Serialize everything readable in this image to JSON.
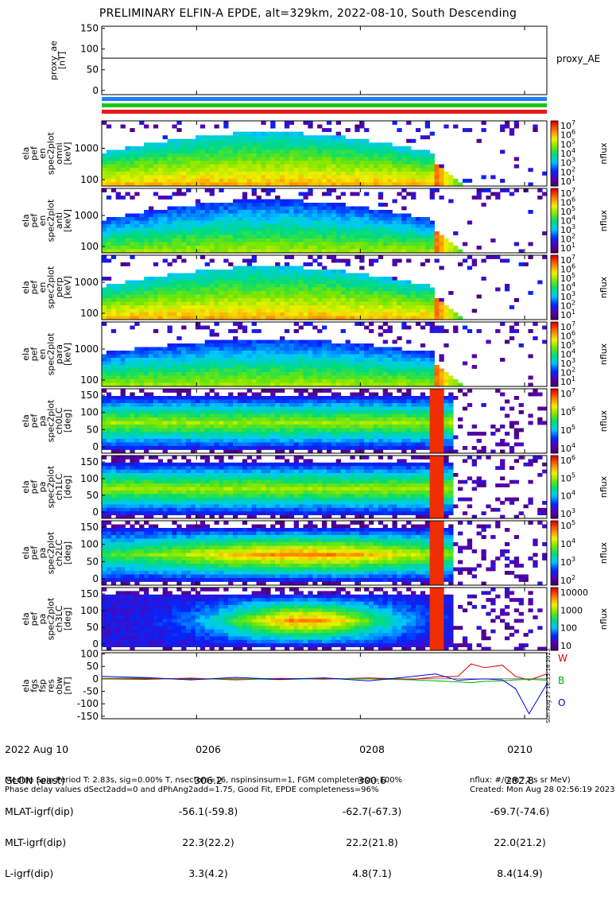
{
  "title": "PRELIMINARY ELFIN-A EPDE, alt=329km, 2022-08-10, South Descending",
  "colors": {
    "blue_bar": "#1e7fff",
    "green_bar": "#18c818",
    "red_bar": "#e81818",
    "proxy_line": "#000000",
    "w_line": "#e00000",
    "b_line": "#00b000",
    "o_line": "#0000e0"
  },
  "chart_data": [
    {
      "type": "line",
      "ylabel_lines": [
        "proxy_ae",
        "[nT]"
      ],
      "legend": "proxy_AE",
      "ylim": [
        -10,
        155
      ],
      "yticks": [
        "150",
        "100",
        "50",
        "0"
      ],
      "x": [
        0,
        1
      ],
      "values": [
        78,
        78
      ]
    },
    {
      "type": "heatmap",
      "ylabel_lines": [
        "ela",
        "pef",
        "en",
        "spec2plot",
        "omni",
        "[keV]"
      ],
      "yticks": [
        "1000",
        "100"
      ],
      "colorbar_label": "nflux",
      "colorbar_ticks": [
        "10^7",
        "10^6",
        "10^5",
        "10^4",
        "10^3",
        "10^2",
        "10^1"
      ]
    },
    {
      "type": "heatmap",
      "ylabel_lines": [
        "ela",
        "pef",
        "en",
        "spec2plot",
        "anti",
        "[keV]"
      ],
      "yticks": [
        "1000",
        "100"
      ],
      "colorbar_label": "nflux",
      "colorbar_ticks": [
        "10^7",
        "10^6",
        "10^5",
        "10^4",
        "10^3",
        "10^2",
        "10^1"
      ]
    },
    {
      "type": "heatmap",
      "ylabel_lines": [
        "ela",
        "pef",
        "en",
        "spec2plot",
        "perp",
        "[keV]"
      ],
      "yticks": [
        "1000",
        "100"
      ],
      "colorbar_label": "nflux",
      "colorbar_ticks": [
        "10^7",
        "10^6",
        "10^5",
        "10^4",
        "10^3",
        "10^2",
        "10^1"
      ]
    },
    {
      "type": "heatmap",
      "ylabel_lines": [
        "ela",
        "pef",
        "en",
        "spec2plot",
        "para",
        "[keV]"
      ],
      "yticks": [
        "1000",
        "100"
      ],
      "colorbar_label": "nflux",
      "colorbar_ticks": [
        "10^7",
        "10^6",
        "10^5",
        "10^4",
        "10^3",
        "10^2",
        "10^1"
      ]
    },
    {
      "type": "heatmap",
      "ylabel_lines": [
        "ela",
        "pef",
        "pa",
        "spec2plot",
        "ch0LC",
        "[deg]"
      ],
      "yticks": [
        "150",
        "100",
        "50",
        "0"
      ],
      "colorbar_label": "nflux",
      "colorbar_ticks": [
        "10^7",
        "10^6",
        "10^5",
        "10^4"
      ]
    },
    {
      "type": "heatmap",
      "ylabel_lines": [
        "ela",
        "pef",
        "pa",
        "spec2plot",
        "ch1LC",
        "[deg]"
      ],
      "yticks": [
        "150",
        "100",
        "50",
        "0"
      ],
      "colorbar_label": "nflux",
      "colorbar_ticks": [
        "10^6",
        "10^5",
        "10^4",
        "10^3"
      ]
    },
    {
      "type": "heatmap",
      "ylabel_lines": [
        "ela",
        "pef",
        "pa",
        "spec2plot",
        "ch2LC",
        "[deg]"
      ],
      "yticks": [
        "150",
        "100",
        "50",
        "0"
      ],
      "colorbar_label": "nflux",
      "colorbar_ticks": [
        "10^5",
        "10^4",
        "10^3",
        "10^2"
      ]
    },
    {
      "type": "heatmap",
      "ylabel_lines": [
        "ela",
        "pef",
        "pa",
        "spec2plot",
        "ch3LC",
        "[deg]"
      ],
      "yticks": [
        "150",
        "100",
        "50",
        "0"
      ],
      "colorbar_label": "nflux",
      "colorbar_ticks": [
        "10000",
        "1000",
        "100",
        "10"
      ]
    },
    {
      "type": "line",
      "ylabel_lines": [
        "ela",
        "fgs",
        "fsp",
        "res",
        "obw",
        "[nT]"
      ],
      "yticks": [
        "100",
        "50",
        "0",
        "-50",
        "-100",
        "-150"
      ],
      "ylim": [
        -160,
        105
      ],
      "side_stamp": "Sun Aug 27 16:35:16 2023",
      "series": [
        {
          "name": "W",
          "color": "#e00000",
          "x": [
            0,
            0.1,
            0.2,
            0.3,
            0.4,
            0.5,
            0.6,
            0.7,
            0.75,
            0.8,
            0.83,
            0.86,
            0.9,
            0.93,
            0.96,
            1.0
          ],
          "values": [
            0,
            -2,
            3,
            -4,
            2,
            -1,
            4,
            -2,
            8,
            10,
            60,
            45,
            55,
            10,
            -5,
            20
          ]
        },
        {
          "name": "B",
          "color": "#00b000",
          "x": [
            0,
            0.1,
            0.2,
            0.3,
            0.4,
            0.5,
            0.6,
            0.7,
            0.75,
            0.8,
            0.83,
            0.86,
            0.9,
            0.93,
            0.96,
            1.0
          ],
          "values": [
            2,
            3,
            -2,
            1,
            -3,
            2,
            0,
            -4,
            -8,
            -12,
            -15,
            -10,
            -8,
            -4,
            -2,
            -5
          ]
        },
        {
          "name": "O",
          "color": "#0000e0",
          "x": [
            0,
            0.1,
            0.2,
            0.3,
            0.4,
            0.5,
            0.6,
            0.7,
            0.75,
            0.8,
            0.83,
            0.86,
            0.9,
            0.93,
            0.96,
            1.0
          ],
          "values": [
            10,
            5,
            -4,
            6,
            -2,
            4,
            -8,
            10,
            20,
            -6,
            -2,
            0,
            -4,
            -40,
            -140,
            -20
          ]
        }
      ]
    }
  ],
  "xaxis_table": {
    "row_labels": [
      "2022 Aug 10",
      "GLON (east)",
      "MLAT-igrf(dip)",
      "MLT-igrf(dip)",
      "L-igrf(dip)"
    ],
    "columns": [
      {
        "time": "0206",
        "glon": "306.2",
        "mlat": "-56.1(-59.8)",
        "mlt": "22.3(22.2)",
        "l": "3.3(4.2)"
      },
      {
        "time": "0208",
        "glon": "300.6",
        "mlat": "-62.7(-67.3)",
        "mlt": "22.2(21.8)",
        "l": "4.8(7.1)"
      },
      {
        "time": "0210",
        "glon": "282.8",
        "mlat": "-69.7(-74.6)",
        "mlt": "22.0(21.2)",
        "l": "8.4(14.9)"
      }
    ]
  },
  "footer": {
    "left_line1": "Median Spin Period T: 2.83s, sig=0.00% T, nsectors=16, nspinsinsum=1, FGM completeness=100%",
    "left_line2": "Phase delay values dSect2add=0 and dPhAng2add=1.75, Good Fit, EPDE completeness=96%",
    "right_line1": "nflux: #/(cm^2 s sr MeV)",
    "right_line2": "Created: Mon Aug 28 02:56:19 2023"
  }
}
